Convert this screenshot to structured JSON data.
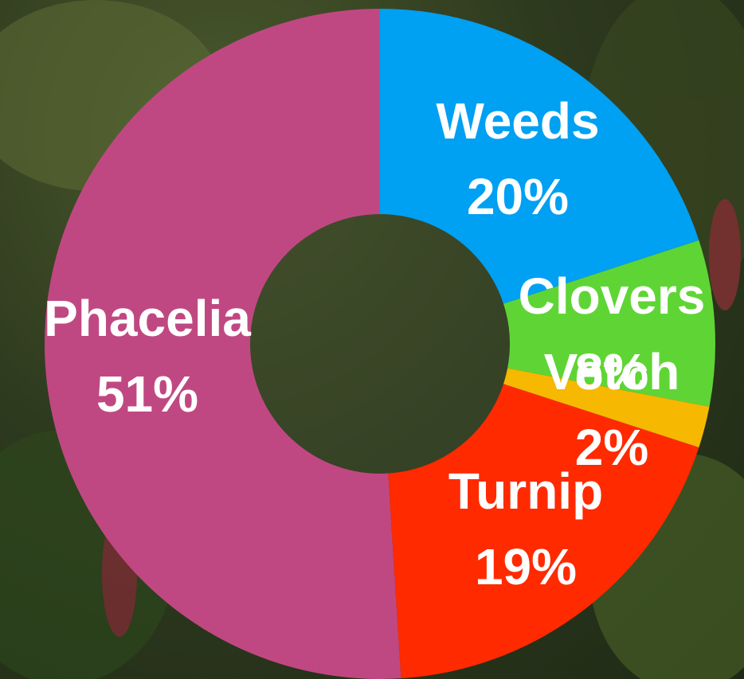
{
  "chart_data": {
    "type": "donut",
    "categories": [
      "Weeds",
      "Clovers",
      "Vetch",
      "Turnip",
      "Phacelia"
    ],
    "values": [
      20,
      8,
      2,
      19,
      51
    ],
    "value_labels": [
      "20%",
      "8%",
      "2%",
      "19%",
      "51%"
    ],
    "colors": [
      "#00a0f2",
      "#5fd535",
      "#f6b800",
      "#ff2a00",
      "#c04882"
    ]
  }
}
